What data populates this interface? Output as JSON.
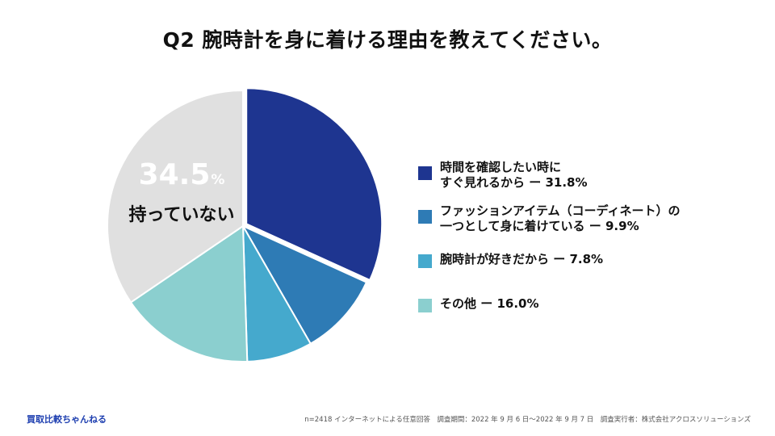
{
  "title": "Q2 腕時計を身に着ける理由を教えてください。",
  "chart_data": {
    "type": "pie",
    "title": "Q2 腕時計を身に着ける理由を教えてください。",
    "slices": [
      {
        "label": "時間を確認したい時にすぐ見れるから",
        "value": 31.8,
        "color": "#1e3590"
      },
      {
        "label": "ファッションアイテム（コーディネート）の一つとして身に着けている",
        "value": 9.9,
        "color": "#2e7bb5"
      },
      {
        "label": "腕時計が好きだから",
        "value": 7.8,
        "color": "#45a9cd"
      },
      {
        "label": "その他",
        "value": 16.0,
        "color": "#8bcfcf"
      },
      {
        "label": "持っていない",
        "value": 34.5,
        "color": "#e0e0e0"
      }
    ],
    "start_angle": "12 o'clock",
    "direction": "clockwise",
    "legend_position": "right"
  },
  "callout": {
    "value": "34.5",
    "unit": "%",
    "label": "持っていない"
  },
  "legend": [
    {
      "lines": [
        "時間を確認したい時に",
        "すぐ見れるから ー 31.8%"
      ],
      "color": "#1e3590"
    },
    {
      "lines": [
        "ファッションアイテム（コーディネート）の",
        "一つとして身に着けている ー 9.9%"
      ],
      "color": "#2e7bb5"
    },
    {
      "lines": [
        "腕時計が好きだから ー 7.8%"
      ],
      "color": "#45a9cd"
    },
    {
      "lines": [
        "その他 ー 16.0%"
      ],
      "color": "#8bcfcf"
    }
  ],
  "footer": {
    "brand": "買取比較ちゃんねる",
    "note": "n=2418 インターネットによる任意回答　調査期間：2022 年 9 月 6 日〜2022 年 9 月 7 日　調査実行者：株式会社アクロスソリューションズ"
  }
}
